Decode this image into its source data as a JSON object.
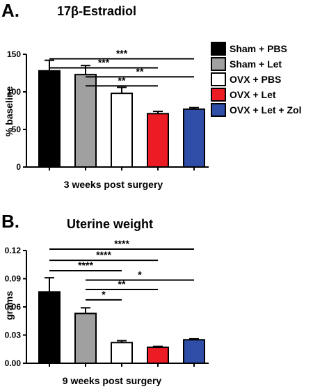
{
  "colors": {
    "Sham + PBS": "#000000",
    "Sham + Let": "#a0a0a0",
    "OVX + PBS": "#ffffff",
    "OVX + Let": "#ec1c24",
    "OVX + Let + Zol": "#2e4ea8"
  },
  "legend": [
    {
      "label": "Sham + PBS",
      "color": "#000000"
    },
    {
      "label": "Sham + Let",
      "color": "#a0a0a0"
    },
    {
      "label": "OVX + PBS",
      "color": "#ffffff"
    },
    {
      "label": "OVX + Let",
      "color": "#ec1c24"
    },
    {
      "label": "OVX + Let + Zol",
      "color": "#2e4ea8"
    }
  ],
  "chart_data": [
    {
      "panel": "A.",
      "type": "bar",
      "title": "17β-Estradiol",
      "xlabel": "3 weeks post surgery",
      "ylabel": "% baseline",
      "ylim": [
        0,
        150
      ],
      "yticks": [
        0,
        50,
        100,
        150
      ],
      "ytick_labels": [
        "0",
        "50",
        "100",
        "150"
      ],
      "categories": [
        "Sham + PBS",
        "Sham + Let",
        "OVX + PBS",
        "OVX + Let",
        "OVX + Let + Zol"
      ],
      "values": [
        128,
        123,
        98,
        71,
        77
      ],
      "errors": [
        14,
        12,
        8,
        3,
        2
      ],
      "significance": [
        {
          "from": 0,
          "to": 4,
          "label": "***",
          "y": 144
        },
        {
          "from": 0,
          "to": 3,
          "label": "***",
          "y": 132
        },
        {
          "from": 1,
          "to": 4,
          "label": "**",
          "y": 120
        },
        {
          "from": 1,
          "to": 3,
          "label": "**",
          "y": 108
        }
      ]
    },
    {
      "panel": "B.",
      "type": "bar",
      "title": "Uterine weight",
      "xlabel": "9 weeks post surgery",
      "ylabel": "grams",
      "ylim": [
        0,
        0.12
      ],
      "yticks": [
        0,
        0.03,
        0.06,
        0.09,
        0.12
      ],
      "ytick_labels": [
        "0.00",
        "0.03",
        "0.06",
        "0.09",
        "0.12"
      ],
      "categories": [
        "Sham + PBS",
        "Sham + Let",
        "OVX + PBS",
        "OVX + Let",
        "OVX + Let + Zol"
      ],
      "values": [
        0.076,
        0.053,
        0.022,
        0.017,
        0.025
      ],
      "errors": [
        0.015,
        0.006,
        0.002,
        0.001,
        0.001
      ],
      "significance": [
        {
          "from": 0,
          "to": 4,
          "label": "****",
          "y": 0.1215
        },
        {
          "from": 0,
          "to": 3,
          "label": "****",
          "y": 0.1095
        },
        {
          "from": 0,
          "to": 2,
          "label": "****",
          "y": 0.0985
        },
        {
          "from": 1,
          "to": 4,
          "label": "*",
          "y": 0.0885
        },
        {
          "from": 1,
          "to": 3,
          "label": "**",
          "y": 0.0785
        },
        {
          "from": 1,
          "to": 2,
          "label": "*",
          "y": 0.0675
        }
      ]
    }
  ]
}
